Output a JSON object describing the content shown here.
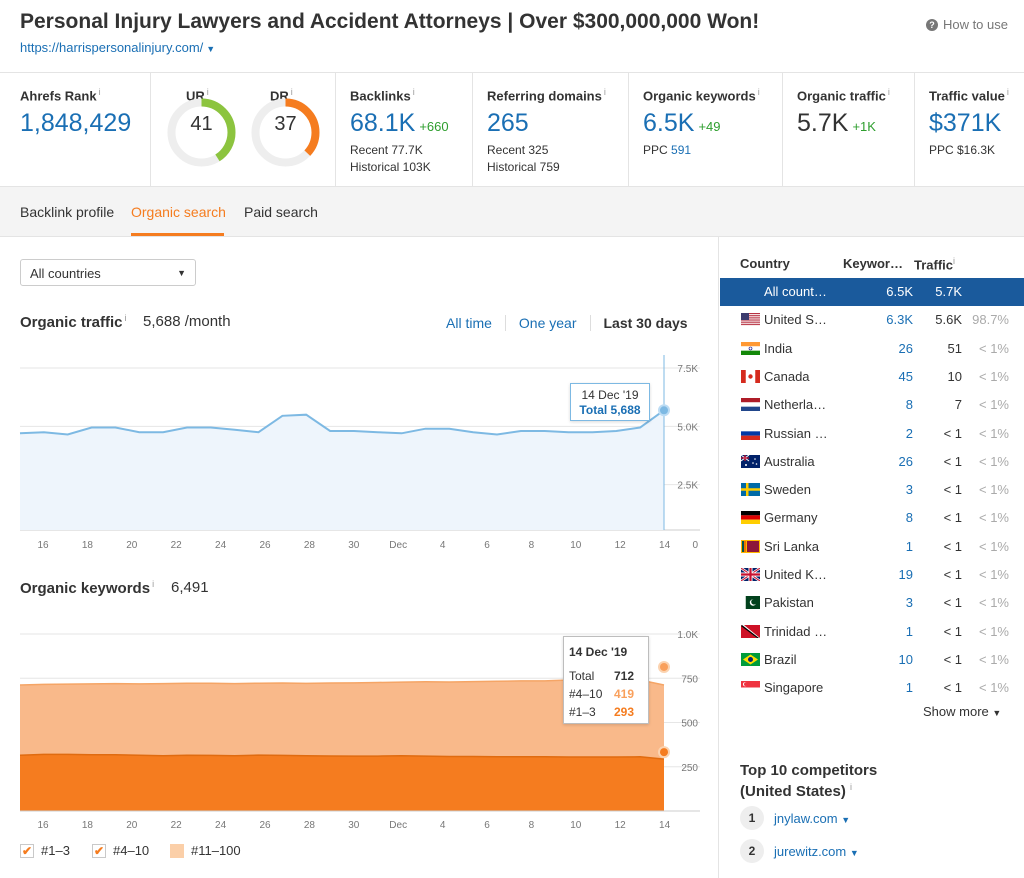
{
  "header": {
    "title": "Personal Injury Lawyers and Accident Attorneys | Over $300,000,000 Won!",
    "url": "https://harrispersonalinjury.com/",
    "how_to_use": "How to use"
  },
  "metrics": {
    "ahrefs_rank": {
      "label": "Ahrefs Rank",
      "value": "1,848,429"
    },
    "ur": {
      "label": "UR",
      "value": "41",
      "fraction": 0.41,
      "color": "#8cc43f"
    },
    "dr": {
      "label": "DR",
      "value": "37",
      "fraction": 0.37,
      "color": "#f57c1f"
    },
    "backlinks": {
      "label": "Backlinks",
      "value": "68.1K",
      "delta": "+660",
      "recent": "Recent 77.7K",
      "historical": "Historical 103K"
    },
    "referring_domains": {
      "label": "Referring domains",
      "value": "265",
      "recent": "Recent 325",
      "historical": "Historical 759"
    },
    "organic_keywords": {
      "label": "Organic keywords",
      "value": "6.5K",
      "delta": "+49",
      "ppc_label": "PPC",
      "ppc_value": "591"
    },
    "organic_traffic": {
      "label": "Organic traffic",
      "value": "5.7K",
      "delta": "+1K"
    },
    "traffic_value": {
      "label": "Traffic value",
      "value": "$371K",
      "ppc": "PPC $16.3K"
    }
  },
  "tabs": [
    {
      "label": "Backlink profile",
      "active": false
    },
    {
      "label": "Organic search",
      "active": true
    },
    {
      "label": "Paid search",
      "active": false
    }
  ],
  "country_select": {
    "value": "All countries"
  },
  "traffic_section": {
    "title": "Organic traffic",
    "value": "5,688 /month",
    "ranges": [
      "All time",
      "One year",
      "Last 30 days"
    ],
    "active_range": "Last 30 days"
  },
  "keywords_section": {
    "title": "Organic keywords",
    "value": "6,491"
  },
  "chart_data": [
    {
      "type": "area",
      "title": "Organic traffic",
      "x_tick_labels": [
        "16",
        "18",
        "20",
        "22",
        "24",
        "26",
        "28",
        "30",
        "Dec",
        "4",
        "6",
        "8",
        "10",
        "12",
        "14"
      ],
      "y_tick_labels": [
        "0",
        "2.5K",
        "5.0K",
        "7.5K"
      ],
      "ylim": [
        0,
        7500
      ],
      "series": [
        {
          "values": [
            4700,
            4750,
            4650,
            4950,
            4950,
            4750,
            4750,
            4950,
            4950,
            4850,
            4750,
            5450,
            5500,
            4800,
            4800,
            4750,
            4700,
            4900,
            4900,
            4750,
            4650,
            4800,
            4800,
            4750,
            4750,
            4800,
            4950,
            5688
          ]
        }
      ],
      "tooltip": {
        "date": "14 Dec '19",
        "label": "Total",
        "value": "5,688"
      },
      "color": "#7db9e3"
    },
    {
      "type": "area",
      "title": "Organic keywords",
      "x_tick_labels": [
        "16",
        "18",
        "20",
        "22",
        "24",
        "26",
        "28",
        "30",
        "Dec",
        "4",
        "6",
        "8",
        "10",
        "12",
        "14"
      ],
      "y_tick_labels": [
        "250",
        "500",
        "750",
        "1.0K"
      ],
      "ylim": [
        0,
        1000
      ],
      "series": [
        {
          "name": "#1–3",
          "values": [
            315,
            320,
            320,
            318,
            318,
            315,
            312,
            315,
            314,
            312,
            316,
            314,
            312,
            311,
            310,
            310,
            312,
            310,
            308,
            308,
            307,
            306,
            306,
            305,
            305,
            305,
            306,
            293
          ]
        },
        {
          "name": "#4–10",
          "values": [
            712,
            715,
            717,
            718,
            720,
            718,
            720,
            722,
            722,
            720,
            722,
            723,
            721,
            723,
            724,
            726,
            728,
            730,
            729,
            731,
            733,
            735,
            735,
            740,
            738,
            738,
            740,
            712
          ]
        }
      ],
      "tooltip": {
        "date": "14 Dec '19",
        "rows": [
          {
            "label": "Total",
            "value": "712"
          },
          {
            "label": "#4–10",
            "value": "419"
          },
          {
            "label": "#1–3",
            "value": "293"
          }
        ]
      },
      "colors": {
        "#1–3": "#f57c1f",
        "#4–10": "#f9b98a"
      }
    }
  ],
  "legend": [
    {
      "label": "#1–3",
      "checked": true
    },
    {
      "label": "#4–10",
      "checked": true
    },
    {
      "label": "#11–100",
      "checked": false
    }
  ],
  "countries_table": {
    "headers": [
      "Country",
      "Keywor…",
      "Traffic"
    ],
    "rows": [
      {
        "name": "All count…",
        "keywords": "6.5K",
        "traffic": "5.7K",
        "pct": "",
        "flag": "none"
      },
      {
        "name": "United S…",
        "keywords": "6.3K",
        "traffic": "5.6K",
        "pct": "98.7%",
        "flag": "us"
      },
      {
        "name": "India",
        "keywords": "26",
        "traffic": "51",
        "pct": "< 1%",
        "flag": "in"
      },
      {
        "name": "Canada",
        "keywords": "45",
        "traffic": "10",
        "pct": "< 1%",
        "flag": "ca"
      },
      {
        "name": "Netherla…",
        "keywords": "8",
        "traffic": "7",
        "pct": "< 1%",
        "flag": "nl"
      },
      {
        "name": "Russian …",
        "keywords": "2",
        "traffic": "< 1",
        "pct": "< 1%",
        "flag": "ru"
      },
      {
        "name": "Australia",
        "keywords": "26",
        "traffic": "< 1",
        "pct": "< 1%",
        "flag": "au"
      },
      {
        "name": "Sweden",
        "keywords": "3",
        "traffic": "< 1",
        "pct": "< 1%",
        "flag": "se"
      },
      {
        "name": "Germany",
        "keywords": "8",
        "traffic": "< 1",
        "pct": "< 1%",
        "flag": "de"
      },
      {
        "name": "Sri Lanka",
        "keywords": "1",
        "traffic": "< 1",
        "pct": "< 1%",
        "flag": "lk"
      },
      {
        "name": "United K…",
        "keywords": "19",
        "traffic": "< 1",
        "pct": "< 1%",
        "flag": "gb"
      },
      {
        "name": "Pakistan",
        "keywords": "3",
        "traffic": "< 1",
        "pct": "< 1%",
        "flag": "pk"
      },
      {
        "name": "Trinidad …",
        "keywords": "1",
        "traffic": "< 1",
        "pct": "< 1%",
        "flag": "tt"
      },
      {
        "name": "Brazil",
        "keywords": "10",
        "traffic": "< 1",
        "pct": "< 1%",
        "flag": "br"
      },
      {
        "name": "Singapore",
        "keywords": "1",
        "traffic": "< 1",
        "pct": "< 1%",
        "flag": "sg"
      }
    ],
    "show_more": "Show more"
  },
  "competitors": {
    "title": "Top 10 competitors (United States)",
    "items": [
      {
        "rank": "1",
        "domain": "jnylaw.com"
      },
      {
        "rank": "2",
        "domain": "jurewitz.com"
      }
    ]
  }
}
